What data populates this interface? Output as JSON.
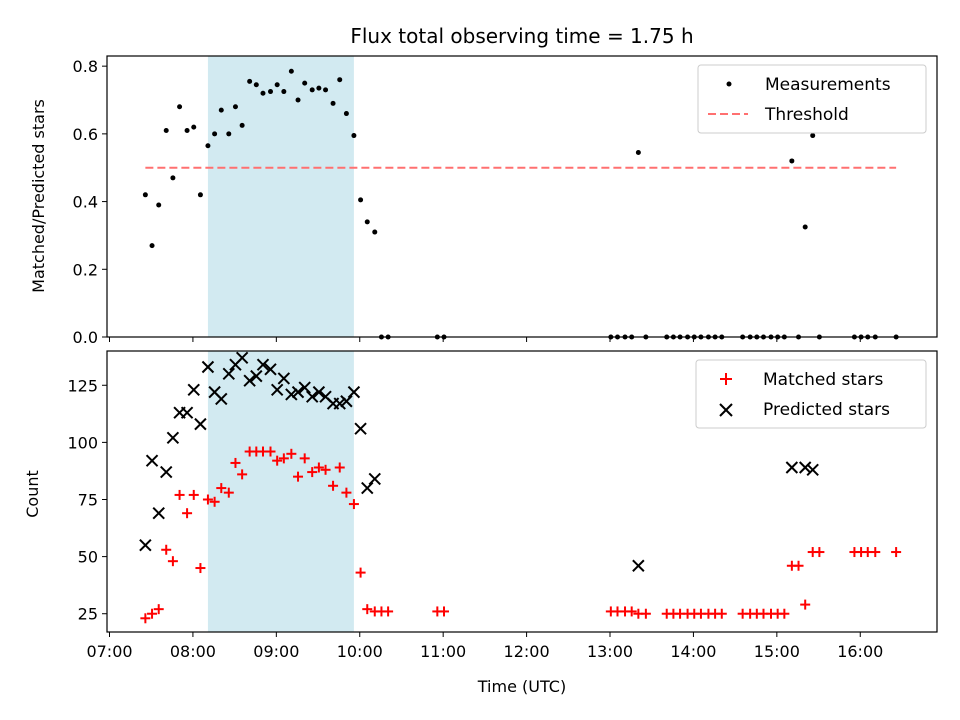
{
  "chart_data": [
    {
      "type": "scatter",
      "title": "Flux total observing time = 1.75 h",
      "xlabel": "",
      "ylabel": "Matched/Predicted stars",
      "xlim": [
        6.97,
        16.92
      ],
      "ylim": [
        0,
        0.83
      ],
      "yticks": [
        0.0,
        0.2,
        0.4,
        0.6,
        0.8
      ],
      "ytick_labels": [
        "0.0",
        "0.2",
        "0.4",
        "0.6",
        "0.8"
      ],
      "shaded_span": {
        "x0": 8.18,
        "x1": 9.93,
        "color": "#add8e6"
      },
      "legend_position": "top-right",
      "series": [
        {
          "name": "Measurements",
          "marker": "dot",
          "color": "#000000",
          "x": [
            7.43,
            7.51,
            7.59,
            7.68,
            7.76,
            7.84,
            7.93,
            8.01,
            8.09,
            8.18,
            8.26,
            8.34,
            8.43,
            8.51,
            8.59,
            8.68,
            8.76,
            8.84,
            8.93,
            9.01,
            9.09,
            9.18,
            9.26,
            9.34,
            9.43,
            9.51,
            9.59,
            9.68,
            9.76,
            9.84,
            9.93,
            10.01,
            10.09,
            10.18,
            10.26,
            10.34,
            10.93,
            11.01,
            13.01,
            13.09,
            13.18,
            13.26,
            13.34,
            13.43,
            13.68,
            13.76,
            13.84,
            13.93,
            14.01,
            14.09,
            14.18,
            14.26,
            14.34,
            14.59,
            14.68,
            14.76,
            14.84,
            14.93,
            15.01,
            15.09,
            15.18,
            15.26,
            15.34,
            15.43,
            15.51,
            15.93,
            16.01,
            16.09,
            16.18,
            16.43
          ],
          "y": [
            0.42,
            0.27,
            0.39,
            0.61,
            0.47,
            0.68,
            0.61,
            0.62,
            0.42,
            0.565,
            0.6,
            0.67,
            0.6,
            0.68,
            0.625,
            0.755,
            0.745,
            0.72,
            0.725,
            0.745,
            0.725,
            0.785,
            0.7,
            0.75,
            0.73,
            0.735,
            0.73,
            0.69,
            0.76,
            0.66,
            0.595,
            0.405,
            0.34,
            0.31,
            0,
            0,
            0,
            0,
            0,
            0,
            0,
            0,
            0.545,
            0,
            0,
            0,
            0,
            0,
            0,
            0,
            0,
            0,
            0,
            0,
            0,
            0,
            0,
            0,
            0,
            0,
            0.52,
            0,
            0.325,
            0.595,
            0,
            0,
            0,
            0,
            0,
            0
          ]
        },
        {
          "name": "Threshold",
          "marker": "dashed-line",
          "color": "#ff7070",
          "x": [
            7.43,
            16.43
          ],
          "y": [
            0.5,
            0.5
          ]
        }
      ]
    },
    {
      "type": "scatter",
      "title": "",
      "xlabel": "Time (UTC)",
      "ylabel": "Count",
      "xlim": [
        6.97,
        16.92
      ],
      "ylim": [
        17,
        140
      ],
      "xticks": [
        7,
        8,
        9,
        10,
        11,
        12,
        13,
        14,
        15,
        16
      ],
      "xtick_labels": [
        "07:00",
        "08:00",
        "09:00",
        "10:00",
        "11:00",
        "12:00",
        "13:00",
        "14:00",
        "15:00",
        "16:00"
      ],
      "yticks": [
        25,
        50,
        75,
        100,
        125
      ],
      "ytick_labels": [
        "25",
        "50",
        "75",
        "100",
        "125"
      ],
      "shaded_span": {
        "x0": 8.18,
        "x1": 9.93,
        "color": "#add8e6"
      },
      "legend_position": "top-right",
      "series": [
        {
          "name": "Matched stars",
          "marker": "plus",
          "color": "#ff0000",
          "x": [
            7.43,
            7.51,
            7.59,
            7.68,
            7.76,
            7.84,
            7.93,
            8.01,
            8.09,
            8.18,
            8.26,
            8.34,
            8.43,
            8.51,
            8.59,
            8.68,
            8.76,
            8.84,
            8.93,
            9.01,
            9.09,
            9.18,
            9.26,
            9.34,
            9.43,
            9.51,
            9.59,
            9.68,
            9.76,
            9.84,
            9.93,
            10.01,
            10.09,
            10.18,
            10.26,
            10.34,
            10.93,
            11.01,
            13.01,
            13.09,
            13.18,
            13.26,
            13.34,
            13.43,
            13.68,
            13.76,
            13.84,
            13.93,
            14.01,
            14.09,
            14.18,
            14.26,
            14.34,
            14.59,
            14.68,
            14.76,
            14.84,
            14.93,
            15.01,
            15.09,
            15.18,
            15.26,
            15.34,
            15.43,
            15.51,
            15.93,
            16.01,
            16.09,
            16.18,
            16.43
          ],
          "y": [
            23,
            25,
            27,
            53,
            48,
            77,
            69,
            77,
            45,
            75,
            74,
            80,
            78,
            91,
            86,
            96,
            96,
            96,
            96,
            92,
            93,
            95,
            85,
            93,
            87,
            89,
            88,
            81,
            89,
            78,
            73,
            43,
            27,
            26,
            26,
            26,
            26,
            26,
            26,
            26,
            26,
            26,
            25,
            25,
            25,
            25,
            25,
            25,
            25,
            25,
            25,
            25,
            25,
            25,
            25,
            25,
            25,
            25,
            25,
            25,
            46,
            46,
            29,
            52,
            52,
            52,
            52,
            52,
            52,
            52
          ]
        },
        {
          "name": "Predicted stars",
          "marker": "x",
          "color": "#000000",
          "x": [
            7.43,
            7.51,
            7.59,
            7.68,
            7.76,
            7.84,
            7.93,
            8.01,
            8.09,
            8.18,
            8.26,
            8.34,
            8.43,
            8.51,
            8.59,
            8.68,
            8.76,
            8.84,
            8.93,
            9.01,
            9.09,
            9.18,
            9.26,
            9.34,
            9.43,
            9.51,
            9.59,
            9.68,
            9.76,
            9.84,
            9.93,
            10.01,
            10.09,
            10.18,
            13.34,
            15.18,
            15.34,
            15.43
          ],
          "y": [
            55,
            92,
            69,
            87,
            102,
            113,
            113,
            123,
            108,
            133,
            122,
            119,
            130,
            134,
            137,
            127,
            129,
            134,
            132,
            123,
            128,
            121,
            122,
            124,
            120,
            122,
            120,
            117,
            117,
            118,
            122,
            106,
            80,
            84,
            46,
            89,
            89,
            88
          ]
        }
      ]
    }
  ]
}
